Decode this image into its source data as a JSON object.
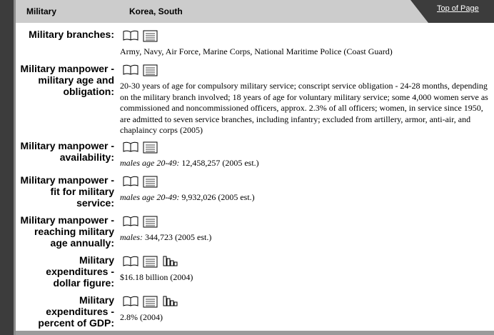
{
  "header": {
    "section": "Military",
    "country": "Korea, South",
    "link": "Top of Page"
  },
  "rows": [
    {
      "label": "Military branches:",
      "text": "Army, Navy, Air Force, Marine Corps, National Maritime Police (Coast Guard)"
    },
    {
      "label": "Military manpower - military age and obligation:",
      "text": "20-30 years of age for compulsory military service; conscript service obligation - 24-28 months, depending on the military branch involved; 18 years of age for voluntary military service; some 4,000 women serve as commissioned and noncommissioned officers, approx. 2.3% of all officers; women, in service since 1950, are admitted to seven service branches, including infantry; excluded from artillery, armor, anti-air, and chaplaincy corps (2005)"
    },
    {
      "label": "Military manpower - availability:",
      "prefix": "males age 20-49:",
      "text": "12,458,257 (2005 est.)"
    },
    {
      "label": "Military manpower - fit for military service:",
      "prefix": "males age 20-49:",
      "text": "9,932,026 (2005 est.)"
    },
    {
      "label": "Military manpower - reaching military age annually:",
      "prefix": "males:",
      "text": "344,723 (2005 est.)"
    },
    {
      "label": "Military expenditures - dollar figure:",
      "text": "$16.18 billion (2004)"
    },
    {
      "label": "Military expenditures - percent of GDP:",
      "text": "2.8% (2004)"
    }
  ]
}
